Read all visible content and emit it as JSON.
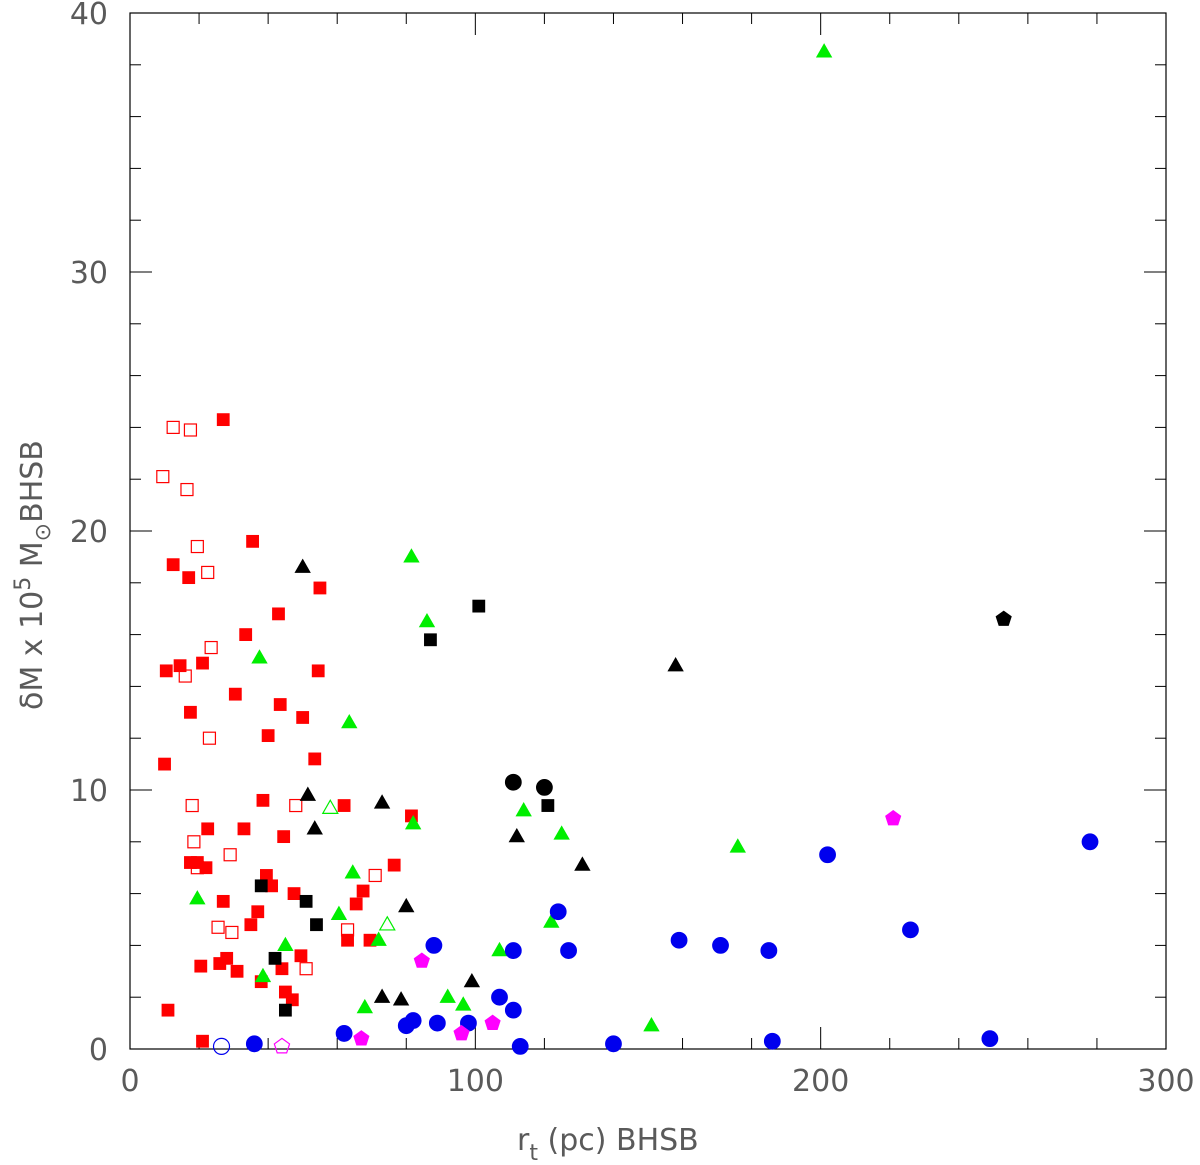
{
  "chart_data": {
    "type": "scatter",
    "title": "",
    "xlabel_main": "r",
    "xlabel_sub": "t",
    "xlabel_rest": " (pc) BHSB",
    "ylabel_lead": "δM x 10",
    "ylabel_sup": "5",
    "ylabel_unit": " M",
    "ylabel_sub": "⊙",
    "ylabel_rest": "BHSB",
    "xlim": [
      0,
      300
    ],
    "ylim": [
      0,
      40
    ],
    "xticks": [
      0,
      100,
      200,
      300
    ],
    "yticks": [
      0,
      10,
      20,
      30,
      40
    ],
    "grid": false,
    "legend": "none",
    "colors": {
      "red": "#ff0000",
      "black": "#000000",
      "green": "#00ee00",
      "blue": "#0000ee",
      "magenta": "#ff00ff"
    },
    "series": [
      {
        "marker": "square",
        "filled": true,
        "color": "red",
        "points": [
          [
            10,
            11
          ],
          [
            10.5,
            14.6
          ],
          [
            11,
            1.5
          ],
          [
            12.5,
            18.7
          ],
          [
            14.5,
            14.8
          ],
          [
            17,
            18.2
          ],
          [
            17.5,
            13
          ],
          [
            17.5,
            7.2
          ],
          [
            19.5,
            7.2
          ],
          [
            20.5,
            3.2
          ],
          [
            21,
            14.9
          ],
          [
            21,
            0.3
          ],
          [
            22,
            7
          ],
          [
            22.5,
            8.5
          ],
          [
            26,
            3.3
          ],
          [
            27,
            5.7
          ],
          [
            27,
            24.3
          ],
          [
            28,
            3.5
          ],
          [
            30.5,
            13.7
          ],
          [
            31,
            3
          ],
          [
            33,
            8.5
          ],
          [
            33.5,
            16
          ],
          [
            35,
            4.8
          ],
          [
            35.5,
            19.6
          ],
          [
            37,
            5.3
          ],
          [
            38,
            2.6
          ],
          [
            38.5,
            9.6
          ],
          [
            39.5,
            6.7
          ],
          [
            40,
            12.1
          ],
          [
            41,
            6.3
          ],
          [
            43,
            16.8
          ],
          [
            43.5,
            13.3
          ],
          [
            44,
            3.1
          ],
          [
            44.5,
            8.2
          ],
          [
            45,
            2.2
          ],
          [
            47.5,
            6
          ],
          [
            49.5,
            3.6
          ],
          [
            50,
            12.8
          ],
          [
            53.5,
            11.2
          ],
          [
            54.5,
            14.6
          ],
          [
            55,
            17.8
          ],
          [
            62,
            9.4
          ],
          [
            63,
            4.2
          ],
          [
            65.5,
            5.6
          ],
          [
            67.5,
            6.1
          ],
          [
            69.5,
            4.2
          ],
          [
            76.5,
            7.1
          ],
          [
            81.5,
            9
          ],
          [
            47,
            1.9
          ]
        ]
      },
      {
        "marker": "square",
        "filled": false,
        "color": "red",
        "points": [
          [
            9.5,
            22.1
          ],
          [
            12.5,
            24
          ],
          [
            16,
            14.4
          ],
          [
            16.5,
            21.6
          ],
          [
            17.5,
            23.9
          ],
          [
            18,
            9.4
          ],
          [
            18.5,
            8
          ],
          [
            19.5,
            19.4
          ],
          [
            22.5,
            18.4
          ],
          [
            23,
            12
          ],
          [
            23.5,
            15.5
          ],
          [
            25.5,
            4.7
          ],
          [
            29,
            7.5
          ],
          [
            29.5,
            4.5
          ],
          [
            48,
            9.4
          ],
          [
            51,
            3.1
          ],
          [
            63,
            4.6
          ],
          [
            71,
            6.7
          ],
          [
            19.5,
            7
          ]
        ]
      },
      {
        "marker": "square",
        "filled": true,
        "color": "black",
        "points": [
          [
            38,
            6.3
          ],
          [
            42,
            3.5
          ],
          [
            45,
            1.5
          ],
          [
            51,
            5.7
          ],
          [
            54,
            4.8
          ],
          [
            87,
            15.8
          ],
          [
            101,
            17.1
          ],
          [
            121,
            9.4
          ]
        ]
      },
      {
        "marker": "triangle",
        "filled": true,
        "color": "black",
        "points": [
          [
            50,
            18.6
          ],
          [
            51.5,
            9.8
          ],
          [
            53.5,
            8.5
          ],
          [
            73,
            9.5
          ],
          [
            73,
            2
          ],
          [
            78.5,
            1.9
          ],
          [
            80,
            5.5
          ],
          [
            99,
            2.6
          ],
          [
            112,
            8.2
          ],
          [
            131,
            7.1
          ],
          [
            158,
            14.8
          ]
        ]
      },
      {
        "marker": "triangle",
        "filled": true,
        "color": "green",
        "points": [
          [
            19.5,
            5.8
          ],
          [
            37.5,
            15.1
          ],
          [
            38.5,
            2.8
          ],
          [
            45,
            4
          ],
          [
            60.5,
            5.2
          ],
          [
            63.5,
            12.6
          ],
          [
            64.5,
            6.8
          ],
          [
            68,
            1.6
          ],
          [
            72,
            4.2
          ],
          [
            81.5,
            19
          ],
          [
            82,
            8.7
          ],
          [
            86,
            16.5
          ],
          [
            92,
            2
          ],
          [
            96.5,
            1.7
          ],
          [
            107,
            3.8
          ],
          [
            114,
            9.2
          ],
          [
            122,
            4.9
          ],
          [
            125,
            8.3
          ],
          [
            151,
            0.9
          ],
          [
            176,
            7.8
          ],
          [
            201,
            38.5
          ]
        ]
      },
      {
        "marker": "triangle",
        "filled": false,
        "color": "green",
        "points": [
          [
            58,
            9.3
          ],
          [
            74.5,
            4.8
          ]
        ]
      },
      {
        "marker": "circle",
        "filled": true,
        "color": "blue",
        "points": [
          [
            36,
            0.2
          ],
          [
            62,
            0.6
          ],
          [
            80,
            0.9
          ],
          [
            82,
            1.1
          ],
          [
            88,
            4
          ],
          [
            89,
            1
          ],
          [
            98,
            1
          ],
          [
            107,
            2
          ],
          [
            111,
            3.8
          ],
          [
            111,
            1.5
          ],
          [
            113,
            0.1
          ],
          [
            124,
            5.3
          ],
          [
            127,
            3.8
          ],
          [
            140,
            0.2
          ],
          [
            159,
            4.2
          ],
          [
            171,
            4
          ],
          [
            185,
            3.8
          ],
          [
            186,
            0.3
          ],
          [
            202,
            7.5
          ],
          [
            226,
            4.6
          ],
          [
            249,
            0.4
          ],
          [
            278,
            8
          ]
        ]
      },
      {
        "marker": "circle",
        "filled": false,
        "color": "blue",
        "points": [
          [
            26.5,
            0.1
          ]
        ]
      },
      {
        "marker": "circle",
        "filled": true,
        "color": "black",
        "points": [
          [
            111,
            10.3
          ],
          [
            120,
            10.1
          ]
        ]
      },
      {
        "marker": "pentagon",
        "filled": true,
        "color": "magenta",
        "points": [
          [
            67,
            0.4
          ],
          [
            84.5,
            3.4
          ],
          [
            96,
            0.6
          ],
          [
            105,
            1
          ],
          [
            221,
            8.9
          ]
        ]
      },
      {
        "marker": "pentagon",
        "filled": false,
        "color": "magenta",
        "points": [
          [
            44,
            0.1
          ]
        ]
      },
      {
        "marker": "pentagon",
        "filled": true,
        "color": "black",
        "points": [
          [
            253,
            16.6
          ]
        ]
      }
    ]
  }
}
